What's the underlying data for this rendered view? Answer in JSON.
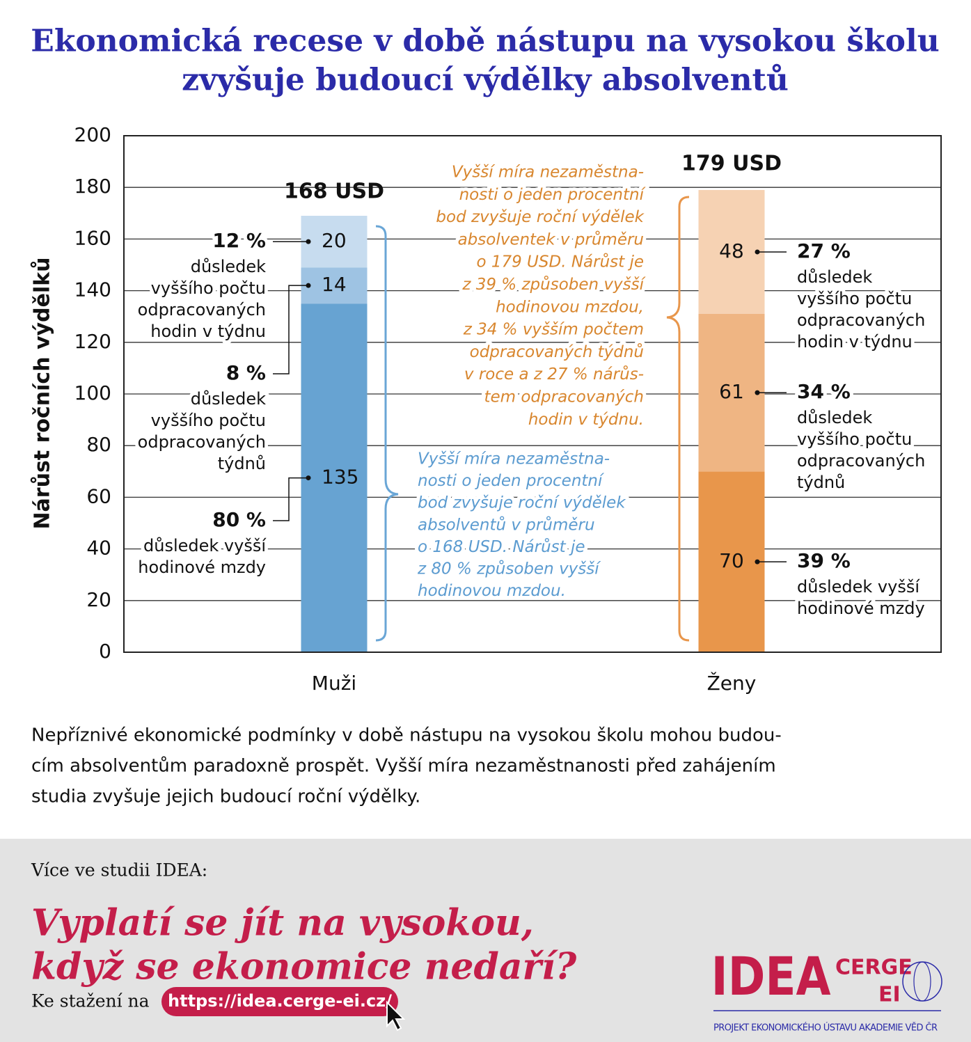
{
  "chart_data": {
    "type": "stacked-bar",
    "title": [
      "Ekonomická recese v době nástupu na vysokou školu",
      "zvyšuje budoucí výdělky absolventů"
    ],
    "y_label": "Nárůst ročních výdělků",
    "categories": [
      "Muži",
      "Ženy"
    ],
    "ylim": [
      0,
      200
    ],
    "yticks": [
      0,
      20,
      40,
      60,
      80,
      100,
      120,
      140,
      160,
      180,
      200
    ],
    "grid": true,
    "total_labels": [
      "168 USD",
      "179 USD"
    ],
    "series": [
      {
        "values": [
          135,
          70
        ],
        "colors": [
          "#67a3d2",
          "#e8964b"
        ],
        "percent_labels": [
          "80 %",
          "39 %"
        ],
        "notes": [
          [
            "důsledek vyšší",
            "hodinové mzdy"
          ],
          [
            "důsledek vyšší",
            "hodinové mzdy"
          ]
        ]
      },
      {
        "values": [
          14,
          61
        ],
        "colors": [
          "#9ec3e3",
          "#efb583"
        ],
        "percent_labels": [
          "8 %",
          "34 %"
        ],
        "notes": [
          [
            "důsledek",
            "vyššího počtu",
            "odpracovaných",
            "týdnů"
          ],
          [
            "důsledek",
            "vyššího počtu",
            "odpracovaných",
            "týdnů"
          ]
        ]
      },
      {
        "values": [
          20,
          48
        ],
        "colors": [
          "#c7dcef",
          "#f6d2b3"
        ],
        "percent_labels": [
          "12 %",
          "27 %"
        ],
        "notes": [
          [
            "důsledek",
            "vyššího počtu",
            "odpracovaných",
            "hodin v týdnu"
          ],
          [
            "důsledek",
            "vyššího počtu",
            "odpracovaných",
            "hodin v týdnu"
          ]
        ]
      }
    ],
    "category_notes": [
      [
        "Vyšší míra nezaměstna-",
        "nosti o jeden procentní",
        "bod zvyšuje roční výdělek",
        "absolventů v průměru",
        "o 168 USD. Nárůst je",
        "z 80 % způsoben vyšší",
        "hodinovou mzdou."
      ],
      [
        "Vyšší míra nezaměstna-",
        "nosti o jeden procentní",
        "bod zvyšuje roční výdělek",
        "absolventek v průměru",
        "o 179 USD. Nárůst je",
        "z 39 % způsoben vyšší",
        "hodinovou mzdou,",
        "z 34 % vyšším počtem",
        "odpracovaných týdnů",
        "v roce a z 27 % nárůs-",
        "tem odpracovaných",
        "hodin v týdnu."
      ]
    ]
  },
  "description": [
    "Nepříznivé ekonomické podmínky v době nástupu na vysokou školu mohou budou-",
    "cím absolventům paradoxně prospět. Vyšší míra nezaměstnanosti před zahájením",
    "studia zvyšuje jejich budoucí roční výdělky."
  ],
  "footer": {
    "intro": "Více ve studii IDEA:",
    "headline": [
      "Vyplatí se jít na vysokou,",
      "když se ekonomice nedaří?"
    ],
    "download": "Ke stažení na",
    "url": "https://idea.cerge-ei.cz/",
    "logo": {
      "idea": "IDEA",
      "cerge": "CERGE",
      "ei": "EI",
      "subtitle": "PROJEKT EKONOMICKÉHO ÚSTAVU AKADEMIE VĚD ČR"
    }
  }
}
